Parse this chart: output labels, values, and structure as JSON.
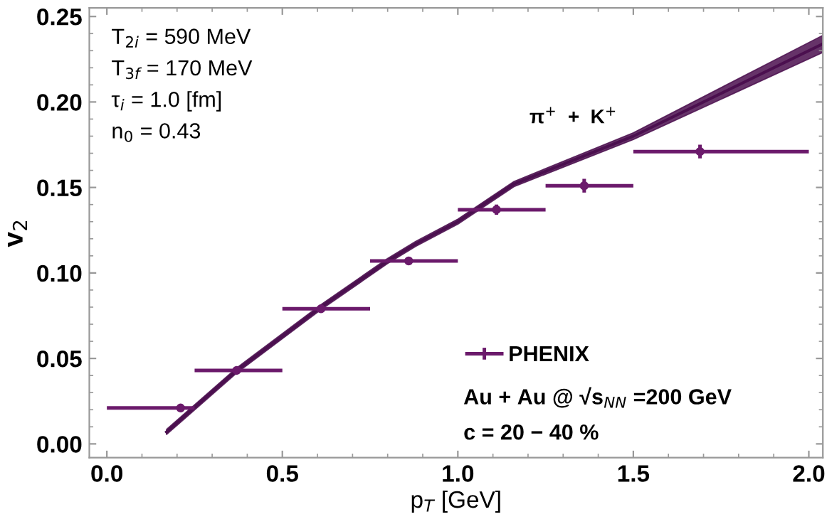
{
  "chart_data": {
    "type": "scatter",
    "xlabel": "p$_{T}$ [GeV]",
    "ylabel": "v$_{2}$",
    "xlim": [
      -0.05,
      2.04
    ],
    "ylim": [
      -0.008,
      0.255
    ],
    "xticks": [
      {
        "value": 0,
        "label": "0.0"
      },
      0.5,
      {
        "value": 1,
        "label": "1.0"
      },
      1.5,
      {
        "value": 2,
        "label": "2.0"
      }
    ],
    "yticks": [
      {
        "value": 0,
        "label": "0.00"
      },
      0.05,
      {
        "value": 0.1,
        "label": "0.10"
      },
      0.15,
      {
        "value": 0.2,
        "label": "0.20"
      },
      0.25
    ],
    "grid": false,
    "legend": "bottom right",
    "series": [
      {
        "type": "line",
        "color": "#4b0f4f",
        "x": [
          0.17,
          0.37,
          0.5,
          0.61,
          0.8,
          0.88,
          1.0,
          1.16,
          1.5,
          2.04
        ],
        "values": [
          0.007,
          0.043,
          0.063,
          0.08,
          0.107,
          0.117,
          0.13,
          0.152,
          0.18,
          0.234
        ],
        "lower": [
          0.0055,
          0.0415,
          0.0615,
          0.0785,
          0.1055,
          0.1155,
          0.1285,
          0.1505,
          0.178,
          0.229
        ],
        "upper": [
          0.0085,
          0.0445,
          0.0645,
          0.0815,
          0.1085,
          0.1185,
          0.1315,
          0.1535,
          0.182,
          0.239
        ]
      },
      {
        "name": "PHENIX",
        "color": "#6b1a6b",
        "marker": "circle",
        "x": [
          0.21,
          0.37,
          0.61,
          0.86,
          1.11,
          1.36,
          1.69
        ],
        "values": [
          0.021,
          0.043,
          0.079,
          0.107,
          0.137,
          0.151,
          0.171
        ],
        "errors": [
          0.002,
          0.002,
          0.002,
          0.002,
          0.003,
          0.004,
          0.004
        ],
        "xerrors": [
          [
            0.0,
            0.25
          ],
          [
            0.25,
            0.5
          ],
          [
            0.5,
            0.75
          ],
          [
            0.75,
            1.0
          ],
          [
            1.0,
            1.25
          ],
          [
            1.25,
            1.5
          ],
          [
            1.5,
            2.0
          ]
        ]
      }
    ],
    "annotations": [
      "T$_{2i}$ = 590 MeV",
      "T$_{3f}$ = 170 MeV",
      "τ$_{i}$ = 1.0 [fm]",
      "n$_{0}$ = 0.43",
      "π$^{+}$  +  K$^{+}$",
      "Au + Au @ √s$_{NN}$ =200 GeV",
      "c = 20 − 40 %"
    ]
  }
}
